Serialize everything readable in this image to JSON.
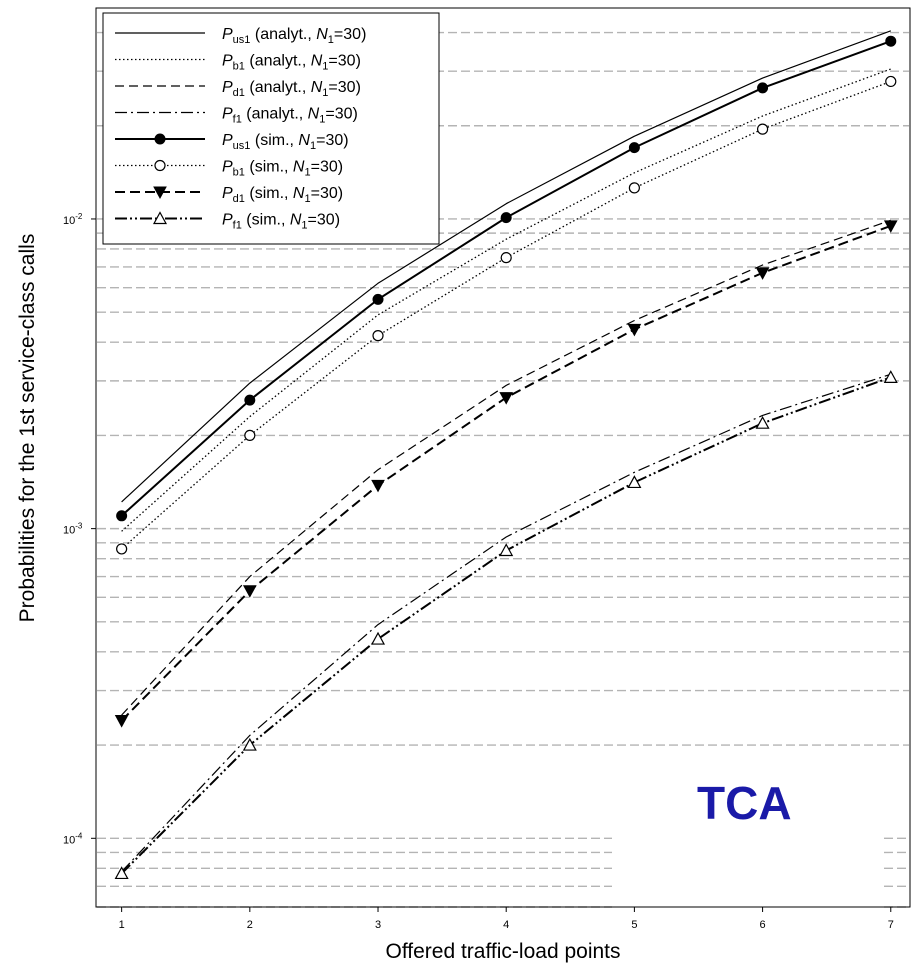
{
  "chart_data": {
    "type": "line",
    "xlabel": "Offered traffic-load points",
    "ylabel": "Probabilities for the 1st service-class calls",
    "x": [
      1,
      2,
      3,
      4,
      5,
      6,
      7
    ],
    "xlim": [
      0.8,
      7.15
    ],
    "ylim": [
      6e-05,
      0.048
    ],
    "yscale": "log",
    "x_ticks": [
      "1",
      "2",
      "3",
      "4",
      "5",
      "6",
      "7"
    ],
    "y_tick_values": [
      0.0001,
      0.001,
      0.01
    ],
    "y_ticks": [
      {
        "base": "10",
        "exp": "-4"
      },
      {
        "base": "10",
        "exp": "-3"
      },
      {
        "base": "10",
        "exp": "-2"
      }
    ],
    "grid": "horizontal dashed at 1-9 multiples of each decade",
    "legend_position": "top-left",
    "annotation": "TCA",
    "annotation_color": "#1a1aa8",
    "series": [
      {
        "key": "pus1_analyt",
        "name": {
          "p": "P",
          "sub": "us1",
          "rest": " (analyt., ",
          "n": "N",
          "nsub": "1",
          "tail": "=30)"
        },
        "style": "solid",
        "marker": "none",
        "values": [
          0.00122,
          0.00295,
          0.0062,
          0.0112,
          0.0185,
          0.0285,
          0.0405
        ]
      },
      {
        "key": "pb1_analyt",
        "name": {
          "p": "P",
          "sub": "b1",
          "rest": " (analyt., ",
          "n": "N",
          "nsub": "1",
          "tail": "=30)"
        },
        "style": "dotted",
        "marker": "none",
        "values": [
          0.00098,
          0.0023,
          0.0049,
          0.0086,
          0.0141,
          0.0215,
          0.0305
        ]
      },
      {
        "key": "pd1_analyt",
        "name": {
          "p": "P",
          "sub": "d1",
          "rest": " (analyt., ",
          "n": "N",
          "nsub": "1",
          "tail": "=30)"
        },
        "style": "dashed",
        "marker": "none",
        "values": [
          0.00025,
          0.0007,
          0.00155,
          0.0029,
          0.0047,
          0.0071,
          0.0099
        ]
      },
      {
        "key": "pf1_analyt",
        "name": {
          "p": "P",
          "sub": "f1",
          "rest": " (analyt., ",
          "n": "N",
          "nsub": "1",
          "tail": "=30)"
        },
        "style": "dashdot",
        "marker": "none",
        "values": [
          7.8e-05,
          0.000215,
          0.00049,
          0.00094,
          0.00152,
          0.00232,
          0.00315
        ]
      },
      {
        "key": "pus1_sim",
        "name": {
          "p": "P",
          "sub": "us1",
          "rest": " (sim., ",
          "n": "N",
          "nsub": "1",
          "tail": "=30)"
        },
        "style": "solid-thick",
        "marker": "filled-circle",
        "values": [
          0.0011,
          0.0026,
          0.0055,
          0.0101,
          0.017,
          0.0265,
          0.0375
        ]
      },
      {
        "key": "pb1_sim",
        "name": {
          "p": "P",
          "sub": "b1",
          "rest": " (sim., ",
          "n": "N",
          "nsub": "1",
          "tail": "=30)"
        },
        "style": "dotted",
        "marker": "open-circle",
        "values": [
          0.00086,
          0.002,
          0.0042,
          0.0075,
          0.0126,
          0.0195,
          0.0278
        ]
      },
      {
        "key": "pd1_sim",
        "name": {
          "p": "P",
          "sub": "d1",
          "rest": " (sim., ",
          "n": "N",
          "nsub": "1",
          "tail": "=30)"
        },
        "style": "dashed-thick",
        "marker": "filled-triangle-down",
        "values": [
          0.00024,
          0.00063,
          0.00138,
          0.00265,
          0.0044,
          0.0067,
          0.0095
        ]
      },
      {
        "key": "pf1_sim",
        "name": {
          "p": "P",
          "sub": "f1",
          "rest": " (sim., ",
          "n": "N",
          "nsub": "1",
          "tail": "=30)"
        },
        "style": "dashdotdot-thick",
        "marker": "open-triangle-up",
        "values": [
          7.7e-05,
          0.0002,
          0.00044,
          0.00085,
          0.00141,
          0.00219,
          0.00308
        ]
      }
    ]
  }
}
